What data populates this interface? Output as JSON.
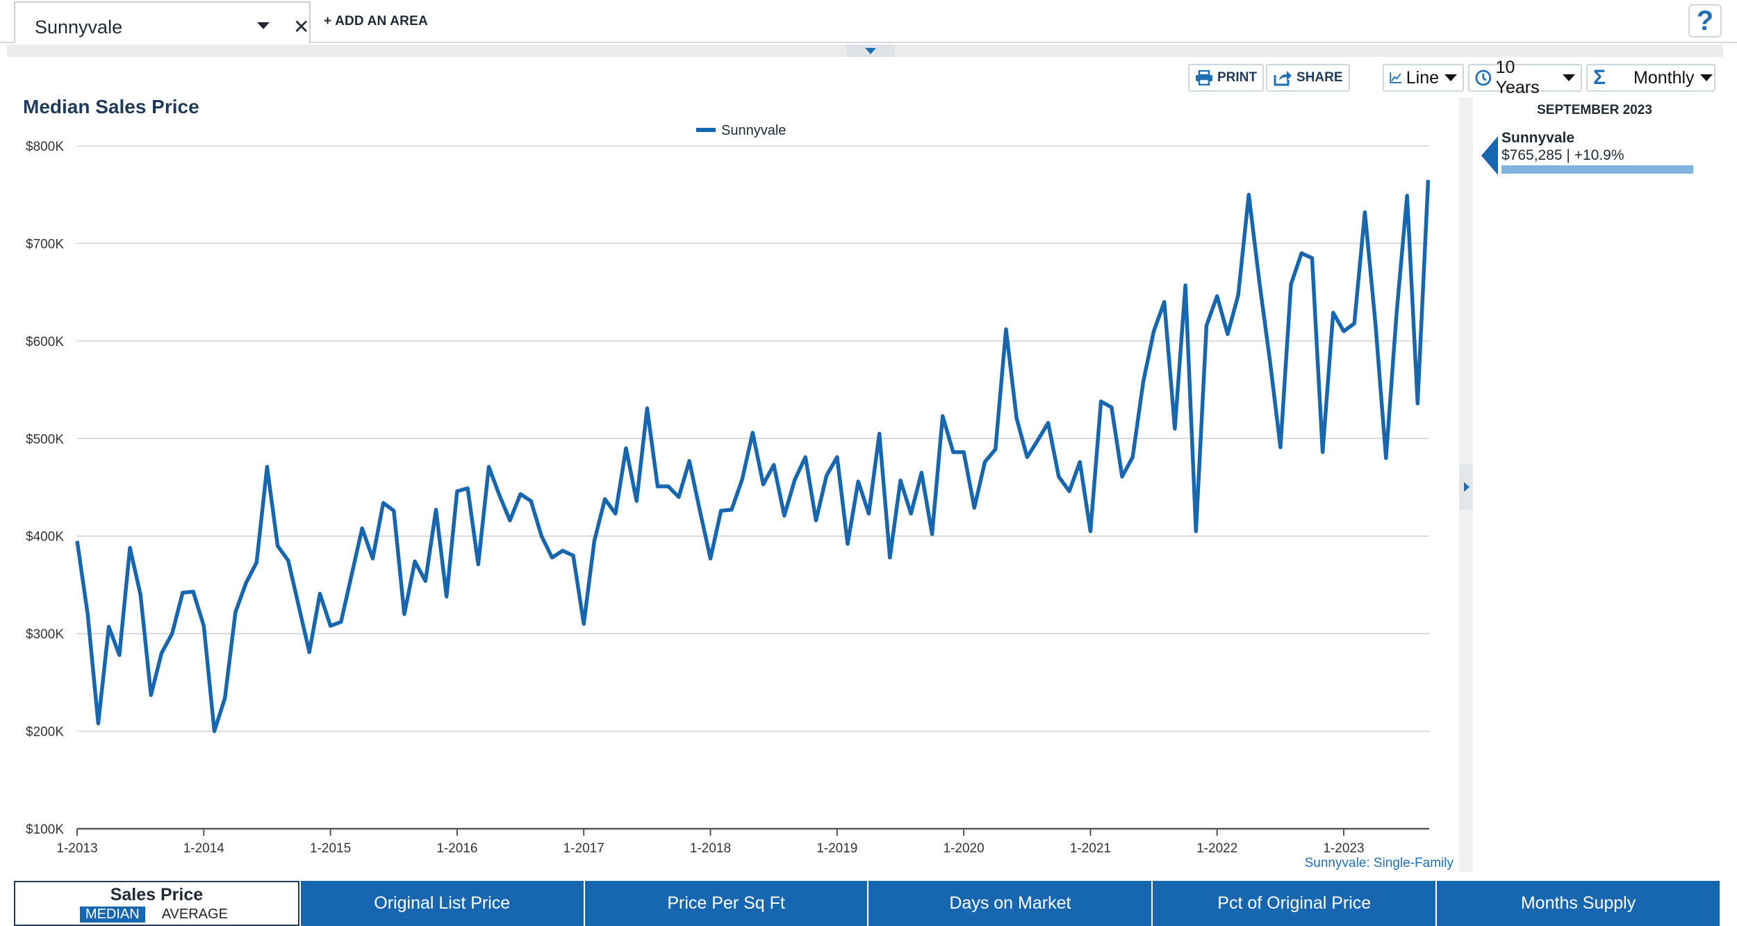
{
  "search": {
    "area": "Sunnyvale",
    "add_area_label": "+ ADD AN AREA",
    "help_label": "?"
  },
  "toolbar": {
    "print_label": "PRINT",
    "share_label": "SHARE",
    "chart_type": "Line",
    "time_range": "10 Years",
    "interval": "Monthly"
  },
  "icons": {
    "print": "printer-icon",
    "share": "share-icon",
    "chart_type": "line-chart-icon",
    "time_range": "clock-icon",
    "interval": "sigma-icon"
  },
  "side_panel": {
    "date": "SEPTEMBER 2023",
    "area": "Sunnyvale",
    "value": "$765,285 | +10.9%",
    "bar_fraction": 0.95
  },
  "colors": {
    "series": "#1767b0",
    "title": "#1f3a5a",
    "tab_bg": "#1767b0",
    "side_bar": "#7fb2dc"
  },
  "tabs": [
    {
      "label": "Sales Price",
      "sub": [
        "MEDIAN",
        "AVERAGE"
      ],
      "active": true
    },
    {
      "label": "Original List Price"
    },
    {
      "label": "Price Per Sq Ft"
    },
    {
      "label": "Days on Market"
    },
    {
      "label": "Pct of Original Price"
    },
    {
      "label": "Months Supply"
    }
  ],
  "chart_data": {
    "type": "line",
    "title": "Median Sales Price",
    "source_label": "Sunnyvale: Single-Family",
    "legend_position": "top-center",
    "grid": true,
    "ylim": [
      100000,
      800000
    ],
    "y_ticks": [
      100000,
      200000,
      300000,
      400000,
      500000,
      600000,
      700000,
      800000
    ],
    "y_tick_labels": [
      "$100K",
      "$200K",
      "$300K",
      "$400K",
      "$500K",
      "$600K",
      "$700K",
      "$800K"
    ],
    "x_tick_labels": [
      "1-2013",
      "1-2014",
      "1-2015",
      "1-2016",
      "1-2017",
      "1-2018",
      "1-2019",
      "1-2020",
      "1-2021",
      "1-2022",
      "1-2023"
    ],
    "x_start": "2013-01",
    "series": [
      {
        "name": "Sunnyvale",
        "values": [
          395000,
          320000,
          208000,
          307000,
          278000,
          388000,
          340000,
          237000,
          280000,
          300000,
          342000,
          343000,
          308000,
          200000,
          234000,
          322000,
          352000,
          373000,
          471000,
          390000,
          375000,
          328000,
          281000,
          341000,
          308000,
          312000,
          360000,
          408000,
          377000,
          434000,
          426000,
          320000,
          374000,
          354000,
          427000,
          338000,
          446000,
          449000,
          371000,
          471000,
          442000,
          416000,
          443000,
          436000,
          400000,
          378000,
          385000,
          380000,
          310000,
          395000,
          438000,
          423000,
          490000,
          436000,
          531000,
          451000,
          451000,
          440000,
          477000,
          426000,
          377000,
          426000,
          427000,
          458000,
          506000,
          453000,
          473000,
          421000,
          458000,
          481000,
          416000,
          462000,
          481000,
          392000,
          456000,
          423000,
          505000,
          378000,
          457000,
          423000,
          465000,
          402000,
          523000,
          486000,
          486000,
          429000,
          476000,
          489000,
          612000,
          521000,
          481000,
          498000,
          516000,
          461000,
          446000,
          476000,
          405000,
          538000,
          532000,
          461000,
          481000,
          558000,
          610000,
          640000,
          510000,
          657000,
          405000,
          616000,
          646000,
          607000,
          647000,
          750000,
          661000,
          580000,
          491000,
          658000,
          690000,
          685000,
          486000,
          629000,
          610000,
          618000,
          732000,
          618000,
          480000,
          628000,
          749000,
          536000,
          765000
        ]
      }
    ]
  }
}
